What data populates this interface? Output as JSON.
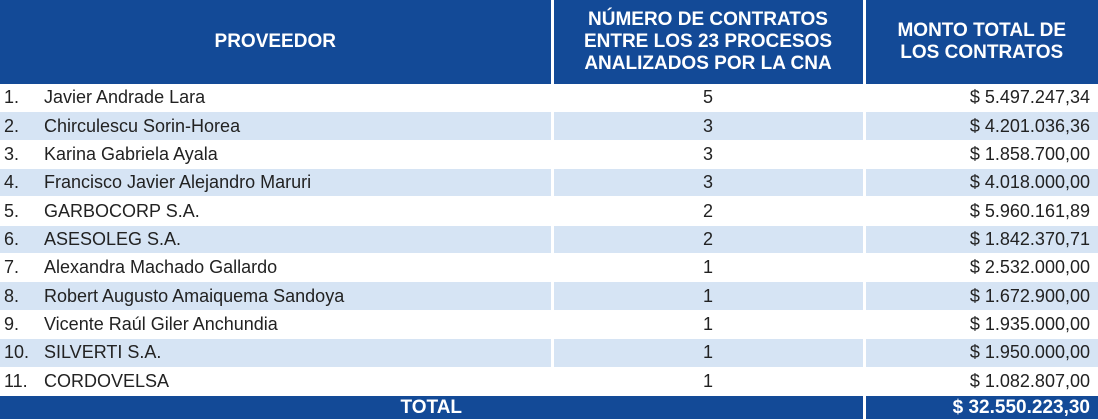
{
  "header": {
    "provider": "PROVEEDOR",
    "contracts": "NÚMERO DE CONTRATOS ENTRE LOS 23 PROCESOS ANALIZADOS POR LA CNA",
    "amount": "MONTO TOTAL DE LOS CONTRATOS"
  },
  "rows": [
    {
      "num": "1.",
      "name": "Javier Andrade Lara",
      "contracts": "5",
      "amount": "$ 5.497.247,34"
    },
    {
      "num": "2.",
      "name": "Chirculescu Sorin-Horea",
      "contracts": "3",
      "amount": "$ 4.201.036,36"
    },
    {
      "num": "3.",
      "name": "Karina Gabriela Ayala",
      "contracts": "3",
      "amount": "$ 1.858.700,00"
    },
    {
      "num": "4.",
      "name": "Francisco Javier Alejandro Maruri",
      "contracts": "3",
      "amount": "$ 4.018.000,00"
    },
    {
      "num": "5.",
      "name": "GARBOCORP S.A.",
      "contracts": "2",
      "amount": "$ 5.960.161,89"
    },
    {
      "num": "6.",
      "name": "ASESOLEG S.A.",
      "contracts": "2",
      "amount": "$ 1.842.370,71"
    },
    {
      "num": "7.",
      "name": "Alexandra Machado Gallardo",
      "contracts": "1",
      "amount": "$ 2.532.000,00"
    },
    {
      "num": "8.",
      "name": "Robert Augusto Amaiquema Sandoya",
      "contracts": "1",
      "amount": "$ 1.672.900,00"
    },
    {
      "num": "9.",
      "name": "Vicente Raúl Giler Anchundia",
      "contracts": "1",
      "amount": "$ 1.935.000,00"
    },
    {
      "num": "10.",
      "name": "SILVERTI S.A.",
      "contracts": "1",
      "amount": "$ 1.950.000,00"
    },
    {
      "num": "11.",
      "name": "CORDOVELSA",
      "contracts": "1",
      "amount": "$ 1.082.807,00"
    }
  ],
  "total": {
    "label": "TOTAL",
    "amount": "$ 32.550.223,30"
  },
  "colors": {
    "header_bg": "#134a97",
    "row_alt_bg": "#d6e4f4"
  }
}
